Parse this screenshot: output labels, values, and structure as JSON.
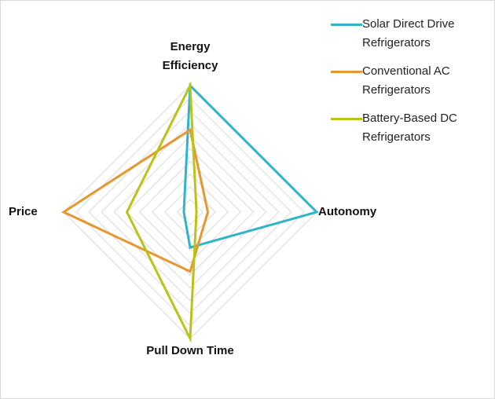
{
  "chart_data": {
    "type": "radar",
    "categories": [
      "Energy Efficiency",
      "Autonomy",
      "Pull Down Time",
      "Price"
    ],
    "series": [
      {
        "name": "Solar Direct Drive Refrigerators",
        "color": "#2fb4c8",
        "values": [
          10,
          10,
          2.8,
          0.5
        ]
      },
      {
        "name": "Conventional AC Refrigerators",
        "color": "#e8962e",
        "values": [
          6.5,
          1.4,
          4.7,
          10
        ]
      },
      {
        "name": "Battery-Based DC Refrigerators",
        "color": "#b9c416",
        "values": [
          10,
          0.5,
          10,
          5
        ]
      }
    ],
    "rlim": [
      0,
      10
    ],
    "rticks": [
      0,
      1,
      2,
      3,
      4,
      5,
      6,
      7,
      8,
      9,
      10
    ],
    "grid": true,
    "legend": "top-right"
  }
}
